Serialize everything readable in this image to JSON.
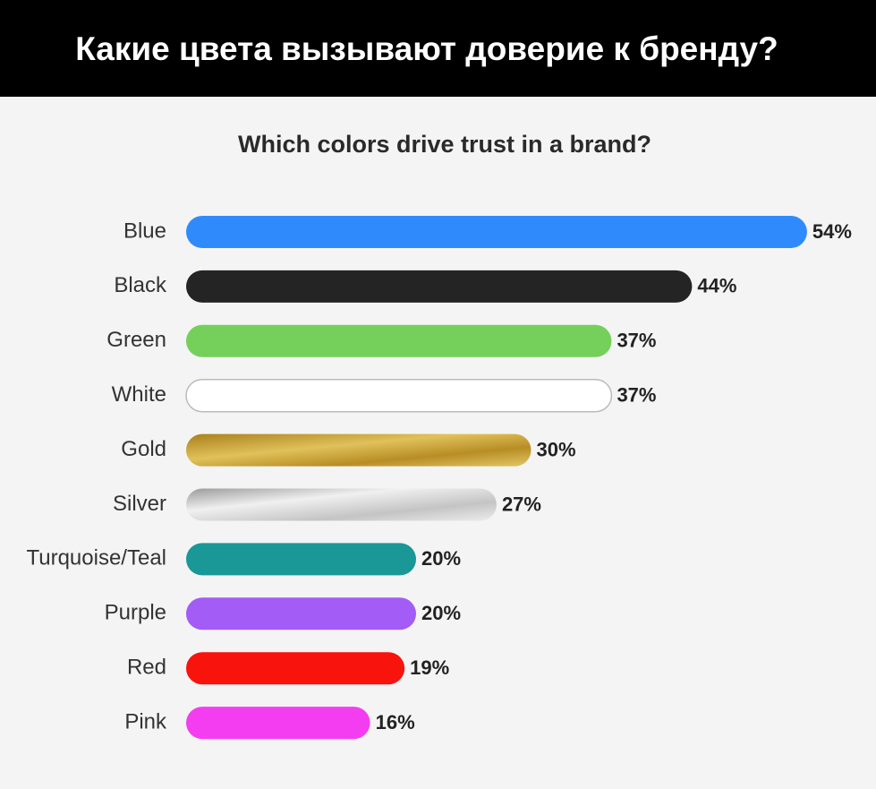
{
  "chart_data": {
    "type": "bar",
    "orientation": "horizontal",
    "title": "Какие цвета вызывают доверие к бренду?",
    "subtitle": "Which colors drive trust in a brand?",
    "categories": [
      "Blue",
      "Black",
      "Green",
      "White",
      "Gold",
      "Silver",
      "Turquoise/Teal",
      "Purple",
      "Red",
      "Pink"
    ],
    "values": [
      54,
      44,
      37,
      37,
      30,
      27,
      20,
      20,
      19,
      16
    ],
    "value_labels": [
      "54%",
      "44%",
      "37%",
      "37%",
      "30%",
      "27%",
      "20%",
      "20%",
      "19%",
      "16%"
    ],
    "colors": [
      "#2f8bfb",
      "#242424",
      "#74d05a",
      "#ffffff",
      "#c39a2e",
      "#cfcfcf",
      "#1a9797",
      "#a35cf5",
      "#f8130d",
      "#f43df0"
    ]
  }
}
